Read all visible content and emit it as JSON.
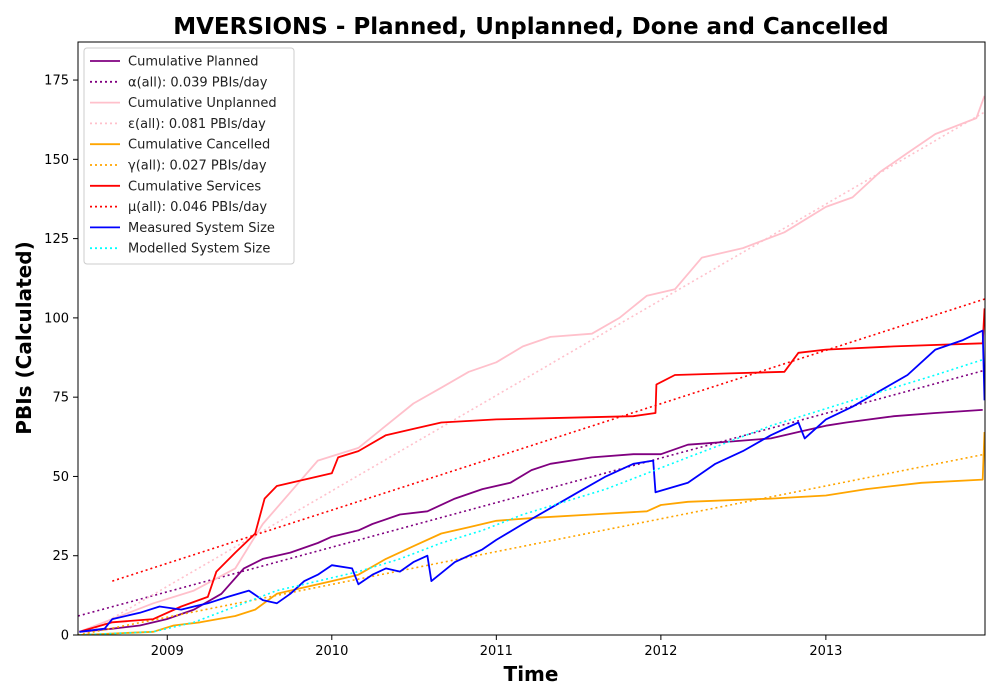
{
  "chart_data": {
    "type": "line",
    "title": "MVERSIONS - Planned, Unplanned, Done  and Cancelled",
    "xlabel": "Time",
    "ylabel": "PBIs (Calculated)",
    "xlim": [
      "2008-06-17",
      "2013-12-20"
    ],
    "ylim": [
      0,
      187
    ],
    "x_ticks": [
      "2009",
      "2010",
      "2011",
      "2012",
      "2013"
    ],
    "y_ticks": [
      0,
      25,
      50,
      75,
      100,
      125,
      150,
      175
    ],
    "grid": false,
    "legend_position": "top-left",
    "series": [
      {
        "name": "Cumulative Planned",
        "color": "#800080",
        "style": "solid",
        "points": [
          [
            "2008-06-20",
            1
          ],
          [
            "2008-09-01",
            2
          ],
          [
            "2008-11-01",
            3
          ],
          [
            "2008-12-31",
            5
          ],
          [
            "2009-03-01",
            8
          ],
          [
            "2009-05-01",
            13
          ],
          [
            "2009-06-20",
            21
          ],
          [
            "2009-08-01",
            24
          ],
          [
            "2009-10-01",
            26
          ],
          [
            "2009-12-01",
            29
          ],
          [
            "2010-01-01",
            31
          ],
          [
            "2010-03-01",
            33
          ],
          [
            "2010-04-01",
            35
          ],
          [
            "2010-06-01",
            38
          ],
          [
            "2010-08-01",
            39
          ],
          [
            "2010-10-01",
            43
          ],
          [
            "2010-12-01",
            46
          ],
          [
            "2011-02-01",
            48
          ],
          [
            "2011-03-20",
            52
          ],
          [
            "2011-05-01",
            54
          ],
          [
            "2011-08-01",
            56
          ],
          [
            "2011-11-01",
            57
          ],
          [
            "2012-01-01",
            57
          ],
          [
            "2012-03-01",
            60
          ],
          [
            "2012-06-01",
            61
          ],
          [
            "2012-09-01",
            62
          ],
          [
            "2012-11-01",
            64
          ],
          [
            "2013-01-01",
            66
          ],
          [
            "2013-02-15",
            67
          ],
          [
            "2013-06-01",
            69
          ],
          [
            "2013-09-01",
            70
          ],
          [
            "2013-12-15",
            71
          ]
        ]
      },
      {
        "name": "α(all): 0.039 PBIs/day",
        "color": "#800080",
        "style": "dotted",
        "points": [
          [
            "2008-06-17",
            6
          ],
          [
            "2013-12-20",
            83.5
          ]
        ]
      },
      {
        "name": "Cumulative Unplanned",
        "color": "#ffc0cb",
        "style": "solid",
        "points": [
          [
            "2008-06-20",
            1
          ],
          [
            "2008-09-01",
            5
          ],
          [
            "2008-12-01",
            10
          ],
          [
            "2009-03-01",
            14
          ],
          [
            "2009-06-01",
            21
          ],
          [
            "2009-08-01",
            35
          ],
          [
            "2009-10-01",
            45
          ],
          [
            "2009-12-01",
            55
          ],
          [
            "2010-03-01",
            59
          ],
          [
            "2010-05-01",
            66
          ],
          [
            "2010-07-01",
            73
          ],
          [
            "2010-09-01",
            78
          ],
          [
            "2010-11-01",
            83
          ],
          [
            "2011-01-01",
            86
          ],
          [
            "2011-03-01",
            91
          ],
          [
            "2011-05-01",
            94
          ],
          [
            "2011-08-01",
            95
          ],
          [
            "2011-10-01",
            100
          ],
          [
            "2011-12-01",
            107
          ],
          [
            "2012-02-01",
            109
          ],
          [
            "2012-04-01",
            119
          ],
          [
            "2012-07-01",
            122
          ],
          [
            "2012-10-01",
            127
          ],
          [
            "2013-01-01",
            135
          ],
          [
            "2013-03-01",
            138
          ],
          [
            "2013-05-01",
            146
          ],
          [
            "2013-07-01",
            152
          ],
          [
            "2013-09-01",
            158
          ],
          [
            "2013-12-01",
            163
          ],
          [
            "2013-12-19",
            170
          ]
        ]
      },
      {
        "name": "ε(all): 0.081 PBIs/day",
        "color": "#ffc0cb",
        "style": "dotted",
        "points": [
          [
            "2008-06-17",
            -1
          ],
          [
            "2013-12-20",
            165
          ]
        ]
      },
      {
        "name": "Cumulative Cancelled",
        "color": "#ffa500",
        "style": "solid",
        "points": [
          [
            "2008-06-20",
            0
          ],
          [
            "2008-12-01",
            1
          ],
          [
            "2009-01-15",
            3
          ],
          [
            "2009-03-15",
            4
          ],
          [
            "2009-06-01",
            6
          ],
          [
            "2009-07-15",
            8
          ],
          [
            "2009-09-01",
            13
          ],
          [
            "2009-11-01",
            15
          ],
          [
            "2010-01-01",
            17
          ],
          [
            "2010-03-01",
            19
          ],
          [
            "2010-05-01",
            24
          ],
          [
            "2010-07-01",
            28
          ],
          [
            "2010-09-01",
            32
          ],
          [
            "2010-11-01",
            34
          ],
          [
            "2011-01-01",
            36
          ],
          [
            "2011-04-01",
            37
          ],
          [
            "2011-08-01",
            38
          ],
          [
            "2011-12-01",
            39
          ],
          [
            "2012-01-01",
            41
          ],
          [
            "2012-03-01",
            42
          ],
          [
            "2012-09-01",
            43
          ],
          [
            "2013-01-01",
            44
          ],
          [
            "2013-04-01",
            46
          ],
          [
            "2013-08-01",
            48
          ],
          [
            "2013-12-15",
            49
          ],
          [
            "2013-12-19",
            64
          ]
        ]
      },
      {
        "name": "γ(all): 0.027 PBIs/day",
        "color": "#ffa500",
        "style": "dotted",
        "points": [
          [
            "2008-06-17",
            0
          ],
          [
            "2013-12-20",
            57
          ]
        ]
      },
      {
        "name": "Cumulative Services",
        "color": "#ff0000",
        "style": "solid",
        "points": [
          [
            "2008-06-20",
            1
          ],
          [
            "2008-09-01",
            4
          ],
          [
            "2008-12-01",
            5
          ],
          [
            "2009-02-01",
            9
          ],
          [
            "2009-04-01",
            12
          ],
          [
            "2009-04-20",
            20
          ],
          [
            "2009-06-01",
            26
          ],
          [
            "2009-07-15",
            32
          ],
          [
            "2009-08-05",
            43
          ],
          [
            "2009-09-01",
            47
          ],
          [
            "2009-11-01",
            49
          ],
          [
            "2010-01-01",
            51
          ],
          [
            "2010-01-15",
            56
          ],
          [
            "2010-03-01",
            58
          ],
          [
            "2010-05-01",
            63
          ],
          [
            "2010-07-01",
            65
          ],
          [
            "2010-09-01",
            67
          ],
          [
            "2011-01-01",
            68
          ],
          [
            "2011-06-01",
            68.5
          ],
          [
            "2011-11-01",
            69
          ],
          [
            "2011-12-20",
            70
          ],
          [
            "2011-12-22",
            79
          ],
          [
            "2012-02-01",
            82
          ],
          [
            "2012-06-01",
            82.5
          ],
          [
            "2012-10-01",
            83
          ],
          [
            "2012-11-01",
            89
          ],
          [
            "2013-01-01",
            90
          ],
          [
            "2013-06-01",
            91
          ],
          [
            "2013-12-15",
            92
          ],
          [
            "2013-12-19",
            103
          ]
        ]
      },
      {
        "name": "μ(all): 0.046 PBIs/day",
        "color": "#ff0000",
        "style": "dotted",
        "points": [
          [
            "2008-09-01",
            17
          ],
          [
            "2013-12-20",
            106
          ]
        ]
      },
      {
        "name": "Measured System Size",
        "color": "#0000ff",
        "style": "solid",
        "points": [
          [
            "2008-06-20",
            1
          ],
          [
            "2008-08-15",
            2
          ],
          [
            "2008-09-01",
            5
          ],
          [
            "2008-11-01",
            7
          ],
          [
            "2008-12-15",
            9
          ],
          [
            "2009-02-01",
            8
          ],
          [
            "2009-03-01",
            9
          ],
          [
            "2009-04-01",
            10
          ],
          [
            "2009-05-15",
            12
          ],
          [
            "2009-07-01",
            14
          ],
          [
            "2009-08-01",
            11
          ],
          [
            "2009-09-01",
            10
          ],
          [
            "2009-10-01",
            13
          ],
          [
            "2009-11-01",
            17
          ],
          [
            "2009-12-01",
            19
          ],
          [
            "2010-01-01",
            22
          ],
          [
            "2010-02-15",
            21
          ],
          [
            "2010-03-01",
            16
          ],
          [
            "2010-04-01",
            19
          ],
          [
            "2010-05-01",
            21
          ],
          [
            "2010-06-01",
            20
          ],
          [
            "2010-07-01",
            23
          ],
          [
            "2010-08-01",
            25
          ],
          [
            "2010-08-10",
            17
          ],
          [
            "2010-10-01",
            23
          ],
          [
            "2010-12-01",
            27
          ],
          [
            "2011-01-01",
            30
          ],
          [
            "2011-03-01",
            35
          ],
          [
            "2011-05-01",
            40
          ],
          [
            "2011-07-01",
            45
          ],
          [
            "2011-09-01",
            50
          ],
          [
            "2011-11-01",
            54
          ],
          [
            "2011-12-15",
            55
          ],
          [
            "2011-12-20",
            45
          ],
          [
            "2012-03-01",
            48
          ],
          [
            "2012-05-01",
            54
          ],
          [
            "2012-07-01",
            58
          ],
          [
            "2012-09-01",
            63
          ],
          [
            "2012-11-01",
            67
          ],
          [
            "2012-11-15",
            62
          ],
          [
            "2013-01-01",
            68
          ],
          [
            "2013-03-01",
            72
          ],
          [
            "2013-05-01",
            77
          ],
          [
            "2013-07-01",
            82
          ],
          [
            "2013-09-01",
            90
          ],
          [
            "2013-11-01",
            93
          ],
          [
            "2013-12-15",
            96
          ],
          [
            "2013-12-19",
            74
          ]
        ]
      },
      {
        "name": "Modelled System Size",
        "color": "#00ffff",
        "style": "dotted",
        "points": [
          [
            "2008-06-20",
            0
          ],
          [
            "2008-12-01",
            1
          ],
          [
            "2009-03-01",
            4
          ],
          [
            "2009-06-01",
            9
          ],
          [
            "2009-09-01",
            14
          ],
          [
            "2009-12-01",
            17
          ],
          [
            "2010-03-01",
            20
          ],
          [
            "2010-06-01",
            24
          ],
          [
            "2010-09-01",
            29
          ],
          [
            "2010-12-01",
            33
          ],
          [
            "2011-03-01",
            38
          ],
          [
            "2011-06-01",
            42
          ],
          [
            "2011-09-01",
            46
          ],
          [
            "2011-12-01",
            51
          ],
          [
            "2012-03-01",
            56
          ],
          [
            "2012-06-01",
            61
          ],
          [
            "2012-09-01",
            66
          ],
          [
            "2012-12-01",
            70
          ],
          [
            "2013-03-01",
            74
          ],
          [
            "2013-06-01",
            78
          ],
          [
            "2013-09-01",
            82
          ],
          [
            "2013-12-19",
            87
          ]
        ]
      }
    ]
  }
}
